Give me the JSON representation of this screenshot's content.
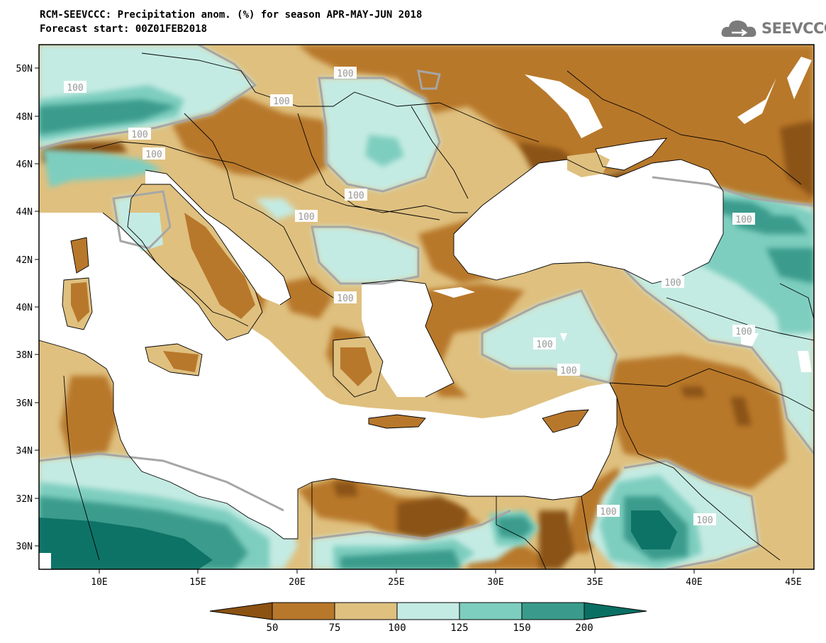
{
  "title": {
    "line1": "RCM-SEEVCCC: Precipitation anom. (%) for season APR-MAY-JUN 2018",
    "line2": "Forecast start: 00Z01FEB2018"
  },
  "logo": {
    "text": "SEEVCCC",
    "icon": "cloud-icon"
  },
  "axes": {
    "y_labels": [
      "50N",
      "48N",
      "46N",
      "44N",
      "42N",
      "40N",
      "38N",
      "36N",
      "34N",
      "32N",
      "30N"
    ],
    "x_labels": [
      "10E",
      "15E",
      "20E",
      "25E",
      "30E",
      "35E",
      "40E",
      "45E"
    ]
  },
  "contour_labels": [
    "100",
    "100",
    "100",
    "100",
    "100",
    "100",
    "100",
    "100",
    "100",
    "100",
    "100",
    "100",
    "100",
    "100",
    "100"
  ],
  "colorbar": {
    "colors": [
      "#8b5212",
      "#b8782c",
      "#dfc07f",
      "#c4ebe3",
      "#7ecebf",
      "#3a9b8c",
      "#0a6f63"
    ],
    "labels": [
      "50",
      "75",
      "100",
      "125",
      "150",
      "200"
    ]
  },
  "colors": {
    "sea": "#ffffff",
    "dry_strong": "#8b5212",
    "dry": "#b8782c",
    "dry_light": "#dfc07f",
    "wet_light": "#c4ebe3",
    "wet": "#7ecebf",
    "wet_strong": "#3a9b8c",
    "wet_very": "#0a6f63",
    "contour_100": "#a6a6a6"
  }
}
